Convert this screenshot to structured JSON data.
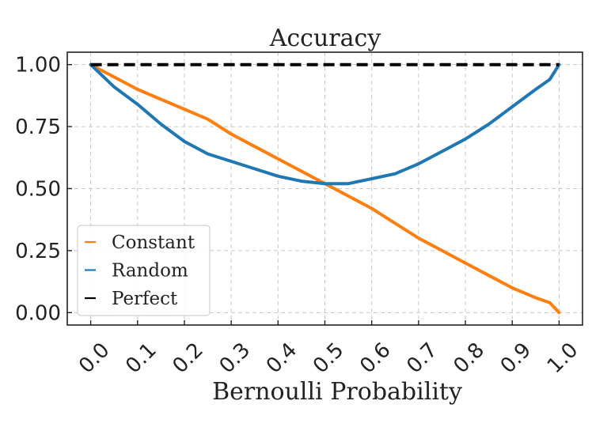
{
  "chart_data": {
    "type": "line",
    "title": "Accuracy",
    "xlabel": "Bernoulli Probability",
    "ylabel": "",
    "xlim": [
      -0.05,
      1.05
    ],
    "ylim": [
      -0.05,
      1.05
    ],
    "xticks": [
      0.0,
      0.1,
      0.2,
      0.3,
      0.4,
      0.5,
      0.6,
      0.7,
      0.8,
      0.9,
      1.0
    ],
    "xtick_labels": [
      "0.0",
      "0.1",
      "0.2",
      "0.3",
      "0.4",
      "0.5",
      "0.6",
      "0.7",
      "0.8",
      "0.9",
      "1.0"
    ],
    "yticks": [
      0.0,
      0.25,
      0.5,
      0.75,
      1.0
    ],
    "ytick_labels": [
      "0.00",
      "0.25",
      "0.50",
      "0.75",
      "1.00"
    ],
    "grid": true,
    "legend_position": "lower-left",
    "x": [
      0.0,
      0.05,
      0.1,
      0.15,
      0.2,
      0.25,
      0.3,
      0.35,
      0.4,
      0.45,
      0.5,
      0.55,
      0.6,
      0.65,
      0.7,
      0.75,
      0.8,
      0.85,
      0.9,
      0.95,
      0.98,
      1.0
    ],
    "series": [
      {
        "name": "Constant",
        "color": "#ff7f0e",
        "dash": "solid",
        "values": [
          1.0,
          0.95,
          0.9,
          0.86,
          0.82,
          0.78,
          0.72,
          0.67,
          0.62,
          0.57,
          0.52,
          0.47,
          0.42,
          0.36,
          0.3,
          0.25,
          0.2,
          0.15,
          0.1,
          0.06,
          0.04,
          0.0
        ]
      },
      {
        "name": "Random",
        "color": "#1f77b4",
        "dash": "solid",
        "values": [
          1.0,
          0.91,
          0.84,
          0.76,
          0.69,
          0.64,
          0.61,
          0.58,
          0.55,
          0.53,
          0.52,
          0.52,
          0.54,
          0.56,
          0.6,
          0.65,
          0.7,
          0.76,
          0.83,
          0.9,
          0.94,
          1.0
        ]
      },
      {
        "name": "Perfect",
        "color": "#000000",
        "dash": "dashed",
        "values": [
          1.0,
          1.0,
          1.0,
          1.0,
          1.0,
          1.0,
          1.0,
          1.0,
          1.0,
          1.0,
          1.0,
          1.0,
          1.0,
          1.0,
          1.0,
          1.0,
          1.0,
          1.0,
          1.0,
          1.0,
          1.0,
          1.0
        ]
      }
    ]
  }
}
